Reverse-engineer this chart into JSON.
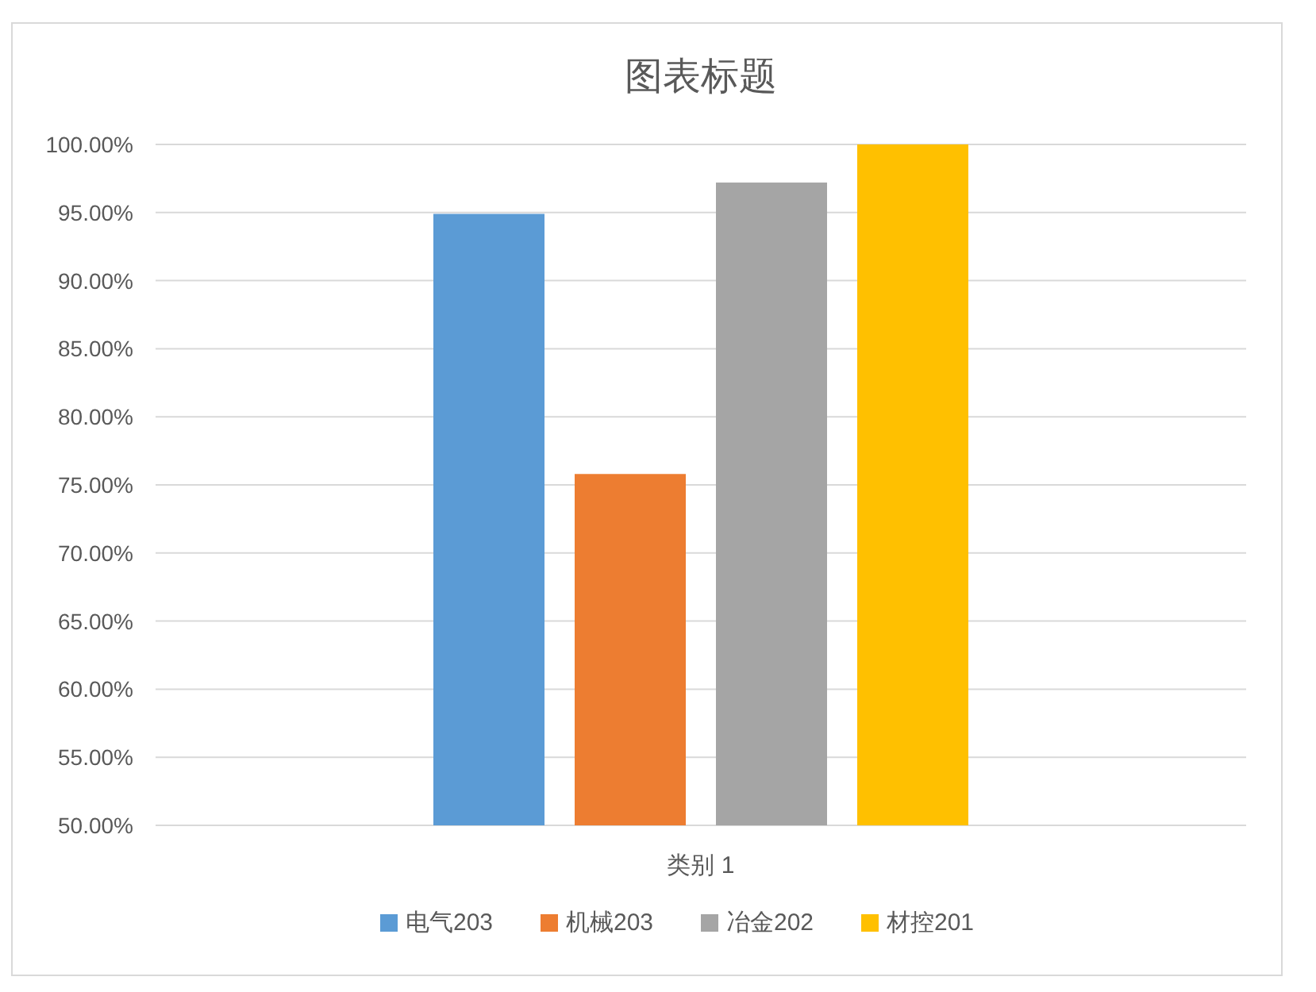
{
  "chart_data": {
    "type": "bar",
    "title": "图表标题",
    "categories": [
      "类别 1"
    ],
    "series": [
      {
        "name": "电气203",
        "color": "#5b9bd5",
        "values": [
          94.9
        ]
      },
      {
        "name": "机械203",
        "color": "#ed7d31",
        "values": [
          75.8
        ]
      },
      {
        "name": "冶金202",
        "color": "#a5a5a5",
        "values": [
          97.2
        ]
      },
      {
        "name": "材控201",
        "color": "#ffc000",
        "values": [
          100
        ]
      }
    ],
    "ylim": [
      50,
      100
    ],
    "yticks": [
      {
        "value": 50,
        "label": "50.00%"
      },
      {
        "value": 55,
        "label": "55.00%"
      },
      {
        "value": 60,
        "label": "60.00%"
      },
      {
        "value": 65,
        "label": "65.00%"
      },
      {
        "value": 70,
        "label": "70.00%"
      },
      {
        "value": 75,
        "label": "75.00%"
      },
      {
        "value": 80,
        "label": "80.00%"
      },
      {
        "value": 85,
        "label": "85.00%"
      },
      {
        "value": 90,
        "label": "90.00%"
      },
      {
        "value": 95,
        "label": "95.00%"
      },
      {
        "value": 100,
        "label": "100.00%"
      }
    ],
    "grid": "y",
    "legend": "bottom"
  }
}
